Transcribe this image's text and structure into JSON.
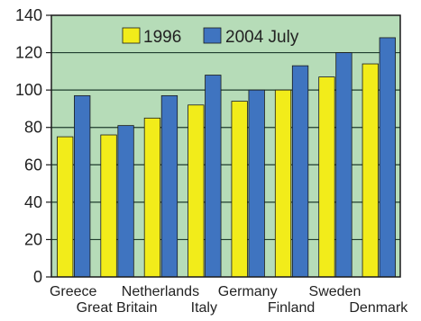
{
  "colors": {
    "plot_bg": "#b6dcb8",
    "gridline": "#1f3d2e",
    "axis": "#1a1a1a",
    "bar_edge": "#1a1a1a"
  },
  "chart_data": {
    "type": "bar",
    "title": "",
    "xlabel": "",
    "ylabel": "",
    "ylim": [
      0,
      140
    ],
    "yticks": [
      "0",
      "20",
      "40",
      "60",
      "80",
      "100",
      "120",
      "140"
    ],
    "categories": [
      "Greece",
      "Great Britain",
      "Netherlands",
      "Italy",
      "Germany",
      "Finland",
      "Sweden",
      "Denmark"
    ],
    "series": [
      {
        "name": "1996",
        "color": "#f2ec1a",
        "values": [
          75,
          76,
          85,
          92,
          94,
          100,
          107,
          114
        ]
      },
      {
        "name": "2004 July",
        "color": "#3f74c0",
        "values": [
          97,
          81,
          97,
          108,
          100,
          113,
          120,
          128
        ]
      }
    ],
    "grid": true,
    "legend_position": "top-center"
  }
}
